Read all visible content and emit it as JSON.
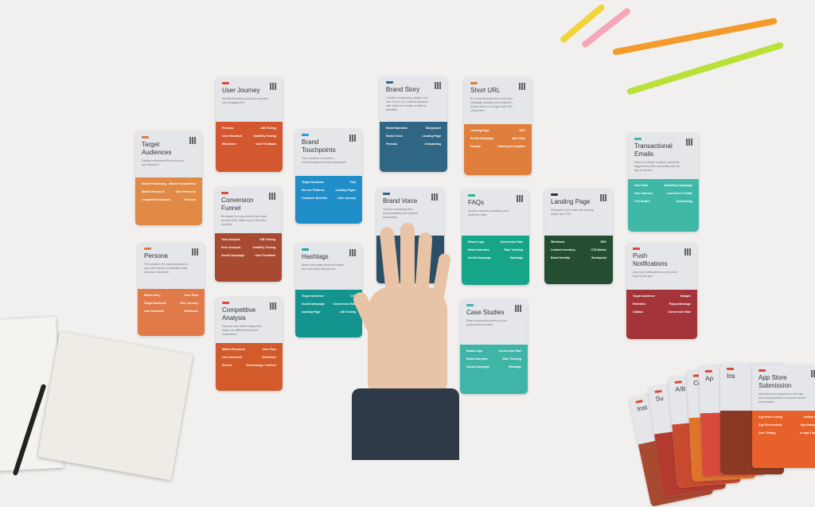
{
  "scene": "overhead view of content-marketing cards laid out on a white table",
  "colors": {
    "background": "#f1f0ee"
  },
  "cards": [
    {
      "title": "Target Audiences",
      "desc": "Deeply understand the users you are writing for",
      "color": "#e08a45",
      "tag": "#e07a40",
      "rows": [
        [
          "Brand Positioning",
          "Market Competition"
        ],
        [
          "Market Research",
          "User Research"
        ],
        [
          "Competitive Analysis",
          "Persona"
        ]
      ]
    },
    {
      "title": "User Journey",
      "desc": "Identify the ideal journey to increase user engagement",
      "color": "#d3582f",
      "tag": "#d84a3a",
      "rows": [
        [
          "Persona",
          "A/B Testing"
        ],
        [
          "User Research",
          "Usability Testing"
        ],
        [
          "Wireframe",
          "User Feedback"
        ]
      ]
    },
    {
      "title": "Conversion Funnel",
      "desc": "Be aware that your funnel has holes at each level. Make sure to fix them properly.",
      "color": "#a84a2f",
      "tag": "#d84a3a",
      "rows": [
        [
          "Task Analysis",
          "A/B Testing"
        ],
        [
          "Error Analysis",
          "Usability Testing"
        ],
        [
          "Social Campaign",
          "User Feedback"
        ]
      ]
    },
    {
      "title": "Persona",
      "desc": "The creation of a representation of your user based on available data and user interviews",
      "color": "#e07a48",
      "tag": "#e07a40",
      "rows": [
        [
          "Brand Story",
          "User Flow"
        ],
        [
          "Target Audience",
          "User Journey"
        ],
        [
          "User Research",
          "Wireframe"
        ]
      ]
    },
    {
      "title": "Competitive Analysis",
      "desc": "Discover and define things that make you different from your competitors",
      "color": "#d35a2a",
      "tag": "#d84a3a",
      "rows": [
        [
          "Market Research",
          "User Flow"
        ],
        [
          "User Research",
          "Wireframe"
        ],
        [
          "Service",
          "Terminology / Content"
        ]
      ]
    },
    {
      "title": "Brand Touchpoints",
      "desc": "Try to achieve consistent communication at every touchpoint",
      "color": "#1f8ec9",
      "tag": "#2a9ad8",
      "rows": [
        [
          "Target Audience",
          "FAQ"
        ],
        [
          "Service Features",
          "Landing Pages"
        ],
        [
          "Customer Benefits",
          "User Journey"
        ]
      ]
    },
    {
      "title": "Hashtags",
      "desc": "Make your target audience easier find and follow discussions",
      "color": "#14948f",
      "tag": "#1aa8a0",
      "rows": [
        [
          "Target Audience",
          "CTA"
        ],
        [
          "Social Campaign",
          "Conversion Rate"
        ],
        [
          "Landing Page",
          "A/B Testing"
        ]
      ]
    },
    {
      "title": "Brand Story",
      "desc": "Contain a beginning, middle, and end. Focus on a central character with which the reader or listener identifies.",
      "color": "#2e6683",
      "tag": "#2e6683",
      "rows": [
        [
          "Brand Narrative",
          "Storyboard"
        ],
        [
          "Brand Voice",
          "Landing Page"
        ],
        [
          "Persona",
          "Onboarding"
        ]
      ]
    },
    {
      "title": "Short URL",
      "desc": "It is very important the url for your webpage contains your keyword phrase and is no longer than 100 characters.",
      "color": "#e07f3b",
      "tag": "#e07a40",
      "rows": [
        [
          "Landing Page",
          "SEO"
        ],
        [
          "Social Campaign",
          "User Flow"
        ],
        [
          "Domain",
          "Tracking & Analytics"
        ]
      ]
    },
    {
      "title": "Brand Voice",
      "desc": "Voice is everything that communicates your brand's personality",
      "color": "#2b4f66",
      "tag": "#2e6683",
      "rows": []
    },
    {
      "title": "FAQs",
      "desc": "Answer common questions your audience have.",
      "color": "#17a58a",
      "tag": "#1fb894",
      "rows": [
        [
          "Brand Logo",
          "Conversion Rate"
        ],
        [
          "Brand Narrative",
          "Rate Tracking"
        ],
        [
          "Social Campaign",
          "Hashtags"
        ]
      ]
    },
    {
      "title": "Case Studies",
      "desc": "Share successful stories of your product and services.",
      "color": "#3fb5a8",
      "tag": "#3fb5a8",
      "rows": [
        [
          "Brand Logo",
          "Conversion Rate"
        ],
        [
          "Brand Narrative",
          "Rate Tracking"
        ],
        [
          "Social Campaign",
          "Hashtags"
        ]
      ]
    },
    {
      "title": "Landing Page",
      "desc": "Generate more leads with landing pages and CTA",
      "color": "#244d32",
      "tag": "#333333",
      "rows": [
        [
          "Wireframe",
          "SEO"
        ],
        [
          "Content Inventory",
          "CTA Button"
        ],
        [
          "Brand Identity",
          "Breakpoint"
        ]
      ]
    },
    {
      "title": "Transactional Emails",
      "desc": "Send to a single recipient, generally triggered by their interaction with an app or service.",
      "color": "#3fb8a8",
      "tag": "#3fb8a8",
      "rows": [
        [
          "User Flow",
          "Marketing Campaign"
        ],
        [
          "User Journey",
          "Lead Score & Stats"
        ],
        [
          "CTA Button",
          "Onboarding"
        ]
      ]
    },
    {
      "title": "Push Notifications",
      "desc": "Use push notifications to bring user back to the app",
      "color": "#a5343a",
      "tag": "#d84a3a",
      "rows": [
        [
          "Target Audience",
          "Badges"
        ],
        [
          "Retention",
          "Popup Message"
        ],
        [
          "Citation",
          "Conversion Rate"
        ]
      ]
    }
  ],
  "deck": {
    "front_title": "App Store Submission",
    "front_desc": "Maximize your keywords in the app store keyword field to improve search performance.",
    "front_rows": [
      [
        "App Store Listing",
        "Rating Kit"
      ],
      [
        "App Screenshots",
        "App Ratings"
      ],
      [
        "User Testing",
        "In-App Track"
      ]
    ],
    "peek_titles": [
      "Inst",
      "Su",
      "A/B T",
      "Co A",
      "Ap",
      "Ins"
    ]
  }
}
